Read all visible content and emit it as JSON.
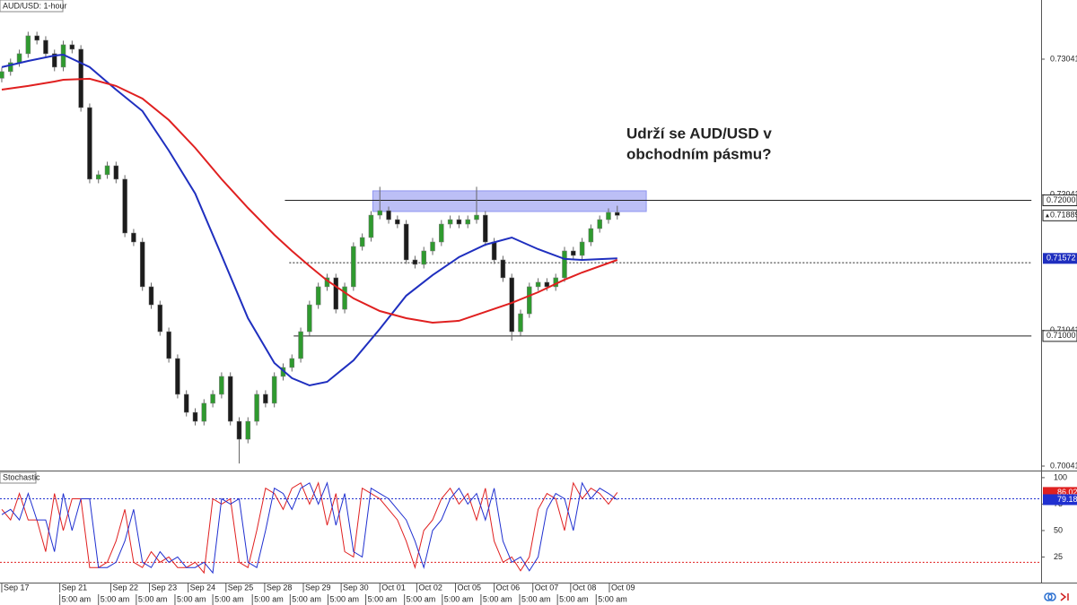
{
  "chart_data": [
    {
      "type": "candlestick",
      "title": "AUD/USD: 1-hour",
      "annotation": [
        "Udrží se AUD/USD v",
        "obchodním pásmu?"
      ],
      "open": [
        0.729,
        0.72949,
        0.73015,
        0.73081,
        0.73213,
        0.7318,
        0.73081,
        0.72982,
        0.73147,
        0.73114,
        0.72684,
        0.72156,
        0.72189,
        0.72255,
        0.72156,
        0.71759,
        0.71693,
        0.71363,
        0.7123,
        0.71032,
        0.70834,
        0.7057,
        0.70437,
        0.70371,
        0.70504,
        0.7057,
        0.70702,
        0.70371,
        0.70239,
        0.70371,
        0.7057,
        0.70504,
        0.70702,
        0.70768,
        0.70834,
        0.71032,
        0.7123,
        0.71363,
        0.71429,
        0.71197,
        0.71363,
        0.7166,
        0.71726,
        0.71891,
        0.71924,
        0.71858,
        0.71825,
        0.71561,
        0.71528,
        0.71627,
        0.71693,
        0.71825,
        0.71858,
        0.71825,
        0.71858,
        0.71891,
        0.71693,
        0.71561,
        0.71429,
        0.71032,
        0.71164,
        0.71363,
        0.71396,
        0.71363,
        0.71429,
        0.71627,
        0.71594,
        0.71693,
        0.71792,
        0.71858,
        0.71911
      ],
      "high": [
        0.72979,
        0.73045,
        0.73111,
        0.73243,
        0.73243,
        0.7321,
        0.73111,
        0.73177,
        0.73177,
        0.73144,
        0.72714,
        0.72219,
        0.72285,
        0.72285,
        0.72186,
        0.71789,
        0.71723,
        0.71393,
        0.7126,
        0.71062,
        0.70864,
        0.706,
        0.70467,
        0.70534,
        0.706,
        0.70732,
        0.70732,
        0.70401,
        0.70401,
        0.706,
        0.706,
        0.70732,
        0.70798,
        0.70864,
        0.71062,
        0.7126,
        0.71393,
        0.71459,
        0.71459,
        0.71393,
        0.7169,
        0.71756,
        0.71921,
        0.721,
        0.71954,
        0.71888,
        0.71855,
        0.71591,
        0.71657,
        0.71723,
        0.71855,
        0.71888,
        0.71888,
        0.71888,
        0.721,
        0.71921,
        0.71723,
        0.71591,
        0.71459,
        0.71194,
        0.71393,
        0.71426,
        0.71426,
        0.71459,
        0.71657,
        0.71657,
        0.71723,
        0.71822,
        0.71888,
        0.71941,
        0.7196
      ],
      "low": [
        0.7287,
        0.72919,
        0.72985,
        0.73051,
        0.7315,
        0.73051,
        0.72952,
        0.72952,
        0.73084,
        0.72654,
        0.72126,
        0.72126,
        0.72159,
        0.72126,
        0.71729,
        0.71663,
        0.71333,
        0.712,
        0.71002,
        0.70804,
        0.7054,
        0.70407,
        0.70341,
        0.70341,
        0.70474,
        0.7054,
        0.70341,
        0.7006,
        0.70209,
        0.70341,
        0.70474,
        0.70474,
        0.70672,
        0.70738,
        0.70804,
        0.71002,
        0.712,
        0.71333,
        0.71167,
        0.71167,
        0.71333,
        0.7163,
        0.71696,
        0.71861,
        0.71828,
        0.71795,
        0.71531,
        0.71498,
        0.71498,
        0.71597,
        0.71663,
        0.71795,
        0.71795,
        0.71795,
        0.71828,
        0.71663,
        0.71531,
        0.71399,
        0.70966,
        0.71002,
        0.71134,
        0.71333,
        0.71333,
        0.71333,
        0.71399,
        0.71564,
        0.71564,
        0.71663,
        0.71762,
        0.71828,
        0.71859
      ],
      "close": [
        0.72949,
        0.73015,
        0.73081,
        0.73213,
        0.7318,
        0.73081,
        0.72982,
        0.73147,
        0.73114,
        0.72684,
        0.72156,
        0.72189,
        0.72255,
        0.72156,
        0.71759,
        0.71693,
        0.71363,
        0.7123,
        0.71032,
        0.70834,
        0.7057,
        0.70437,
        0.70371,
        0.70504,
        0.7057,
        0.70702,
        0.70371,
        0.70239,
        0.70371,
        0.7057,
        0.70504,
        0.70702,
        0.70768,
        0.70834,
        0.71032,
        0.7123,
        0.71363,
        0.71429,
        0.71197,
        0.71363,
        0.7166,
        0.71726,
        0.71891,
        0.71924,
        0.71858,
        0.71825,
        0.71561,
        0.71528,
        0.71627,
        0.71693,
        0.71825,
        0.71858,
        0.71825,
        0.71858,
        0.71891,
        0.71693,
        0.71561,
        0.71429,
        0.71032,
        0.71164,
        0.71363,
        0.71396,
        0.71363,
        0.71429,
        0.71627,
        0.71594,
        0.71693,
        0.71792,
        0.71858,
        0.71911,
        0.71889
      ],
      "up_color": "#2f9a2f",
      "down_color": "#1c1c1c",
      "moving_averages": [
        {
          "color": "#1f2fbf",
          "x": [
            0,
            3,
            6,
            7,
            10,
            13,
            16,
            19,
            22,
            25,
            28,
            31,
            33,
            35,
            37,
            40,
            43,
            46,
            49,
            52,
            55,
            58,
            61,
            64,
            66,
            70
          ],
          "values": [
            0.72982,
            0.73028,
            0.73067,
            0.73074,
            0.72982,
            0.72816,
            0.72658,
            0.72367,
            0.7205,
            0.71594,
            0.71131,
            0.70801,
            0.70689,
            0.70636,
            0.70662,
            0.70821,
            0.71052,
            0.71297,
            0.71449,
            0.71581,
            0.71673,
            0.71726,
            0.7164,
            0.71568,
            0.71561,
            0.71572
          ]
        },
        {
          "color": "#e02020",
          "x": [
            0,
            3,
            6,
            7,
            10,
            13,
            16,
            19,
            22,
            25,
            28,
            31,
            33,
            35,
            37,
            40,
            43,
            46,
            49,
            52,
            55,
            58,
            61,
            64,
            66,
            70
          ],
          "values": [
            0.72816,
            0.72843,
            0.72876,
            0.72889,
            0.72896,
            0.72843,
            0.7275,
            0.72592,
            0.72387,
            0.72156,
            0.71944,
            0.71746,
            0.71627,
            0.71515,
            0.71409,
            0.71277,
            0.71184,
            0.71131,
            0.71098,
            0.71112,
            0.71178,
            0.71244,
            0.71323,
            0.71415,
            0.71468,
            0.71561
          ]
        }
      ],
      "hlines": [
        {
          "value": 0.72,
          "label": "0.72000",
          "x": [
            32.2,
            117.1
          ],
          "style": "solid"
        },
        {
          "value": 0.71,
          "label": "0.71000",
          "x": [
            33.2,
            117.1
          ],
          "style": "solid"
        },
        {
          "value": 0.7154,
          "x": [
            32.7,
            117.1
          ],
          "style": "dotted"
        }
      ],
      "zone": {
        "x": [
          42.2,
          73.3
        ],
        "y": [
          0.71918,
          0.7207
        ],
        "color": "#8f95f0"
      },
      "xlim": [
        -0.2,
        118.2
      ],
      "ylim": [
        0.70008,
        0.73477
      ],
      "yticks": [
        0.70041,
        0.71041,
        0.72041,
        0.73041
      ],
      "xticks": [
        {
          "value": 0,
          "label": "Sep 17"
        },
        {
          "value": 6.6,
          "label": "Sep 21"
        },
        {
          "value": 12.4,
          "label": "Sep 22"
        },
        {
          "value": 16.8,
          "label": "Sep 23"
        },
        {
          "value": 21.2,
          "label": "Sep 24"
        },
        {
          "value": 25.5,
          "label": "Sep 25"
        },
        {
          "value": 29.9,
          "label": "Sep 28"
        },
        {
          "value": 34.3,
          "label": "Sep 29"
        },
        {
          "value": 38.6,
          "label": "Sep 30"
        },
        {
          "value": 43.0,
          "label": "Oct 01"
        },
        {
          "value": 47.2,
          "label": "Oct 02"
        },
        {
          "value": 51.6,
          "label": "Oct 05"
        },
        {
          "value": 56.0,
          "label": "Oct 06"
        },
        {
          "value": 60.4,
          "label": "Oct 07"
        },
        {
          "value": 64.7,
          "label": "Oct 08"
        },
        {
          "value": 69.1,
          "label": "Oct 09"
        }
      ],
      "xticks_time": [
        {
          "value": 6.6,
          "label": "5:00 am"
        },
        {
          "value": 11.0,
          "label": "5:00 am"
        },
        {
          "value": 15.3,
          "label": "5:00 am"
        },
        {
          "value": 19.7,
          "label": "5:00 am"
        },
        {
          "value": 24.0,
          "label": "5:00 am"
        },
        {
          "value": 28.5,
          "label": "5:00 am"
        },
        {
          "value": 32.8,
          "label": "5:00 am"
        },
        {
          "value": 37.1,
          "label": "5:00 am"
        },
        {
          "value": 41.4,
          "label": "5:00 am"
        },
        {
          "value": 45.8,
          "label": "5:00 am"
        },
        {
          "value": 50.1,
          "label": "5:00 am"
        },
        {
          "value": 54.5,
          "label": "5:00 am"
        },
        {
          "value": 58.9,
          "label": "5:00 am"
        },
        {
          "value": 63.2,
          "label": "5:00 am"
        },
        {
          "value": 67.6,
          "label": "5:00 am"
        }
      ]
    },
    {
      "type": "line",
      "title": "Stochastic",
      "series": [
        {
          "color": "#e02020",
          "values": [
            70,
            60,
            85,
            60,
            60,
            30,
            85,
            50,
            80,
            80,
            15,
            15,
            20,
            40,
            70,
            20,
            15,
            30,
            20,
            25,
            15,
            15,
            20,
            10,
            80,
            75,
            80,
            20,
            15,
            50,
            90,
            85,
            70,
            90,
            95,
            75,
            95,
            55,
            85,
            30,
            25,
            90,
            85,
            80,
            70,
            60,
            40,
            15,
            50,
            60,
            80,
            90,
            75,
            85,
            60,
            90,
            40,
            20,
            25,
            12,
            25,
            70,
            85,
            80,
            50,
            95,
            80,
            90,
            85,
            75,
            86.02
          ]
        },
        {
          "color": "#2030d0",
          "values": [
            65,
            70,
            60,
            85,
            60,
            60,
            30,
            85,
            50,
            80,
            80,
            15,
            15,
            20,
            40,
            70,
            20,
            15,
            30,
            20,
            25,
            15,
            15,
            20,
            10,
            80,
            75,
            80,
            20,
            15,
            50,
            90,
            85,
            70,
            90,
            95,
            75,
            95,
            55,
            85,
            30,
            25,
            90,
            85,
            80,
            70,
            60,
            40,
            15,
            50,
            60,
            80,
            90,
            75,
            85,
            60,
            90,
            40,
            20,
            25,
            12,
            25,
            70,
            85,
            80,
            50,
            95,
            80,
            90,
            85,
            79.18
          ]
        }
      ],
      "levels": [
        {
          "value": 80,
          "color": "#2030d0"
        },
        {
          "value": 20,
          "color": "#e02020"
        }
      ],
      "ylim": [
        2.5,
        105
      ],
      "yticks": [
        25,
        50,
        75,
        100
      ]
    }
  ]
}
